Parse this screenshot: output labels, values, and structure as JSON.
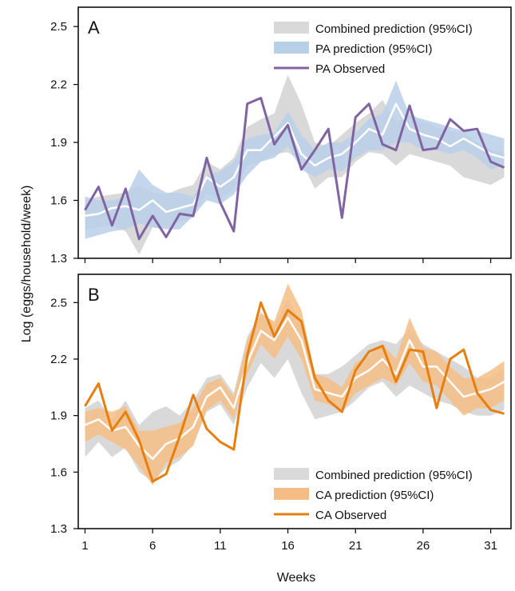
{
  "figure": {
    "ylabel": "Log (eggs/household/week)",
    "xlabel": "Weeks"
  },
  "chart_data": [
    {
      "type": "line",
      "panel_label": "A",
      "ylim": [
        1.3,
        2.6
      ],
      "xlim": [
        0.5,
        32.5
      ],
      "y_ticks": [
        1.3,
        1.6,
        1.9,
        2.2,
        2.5
      ],
      "x_ticks": [
        1,
        6,
        11,
        16,
        21,
        26,
        31
      ],
      "show_x_tick_labels": false,
      "legend_position": "top-right",
      "legend": [
        {
          "label": "Combined prediction (95%CI)",
          "kind": "band",
          "color": "#d9d9d9"
        },
        {
          "label": "PA prediction (95%CI)",
          "kind": "band",
          "color": "#b8cfe8"
        },
        {
          "label": "PA Observed",
          "kind": "line",
          "color": "#8064a2"
        }
      ],
      "colors": {
        "combined_band": "#d9d9d9",
        "pred_band": "#b8cfe8",
        "mean": "#ffffff",
        "observed": "#8064a2"
      },
      "x": [
        1,
        2,
        3,
        4,
        5,
        6,
        7,
        8,
        9,
        10,
        11,
        12,
        13,
        14,
        15,
        16,
        17,
        18,
        19,
        20,
        21,
        22,
        23,
        24,
        25,
        26,
        27,
        28,
        29,
        30,
        31,
        32
      ],
      "series": [
        {
          "name": "Combined prediction (95%CI)",
          "role": "combined_band",
          "lower": [
            1.45,
            1.46,
            1.47,
            1.44,
            1.32,
            1.46,
            1.46,
            1.49,
            1.51,
            1.64,
            1.6,
            1.66,
            1.78,
            1.8,
            1.84,
            1.85,
            1.8,
            1.66,
            1.72,
            1.72,
            1.8,
            1.85,
            1.84,
            1.78,
            1.84,
            1.82,
            1.8,
            1.78,
            1.72,
            1.7,
            1.68,
            1.72
          ],
          "upper": [
            1.6,
            1.62,
            1.63,
            1.64,
            1.68,
            1.64,
            1.63,
            1.66,
            1.68,
            1.8,
            1.76,
            1.82,
            1.98,
            2.02,
            2.05,
            2.25,
            2.1,
            1.9,
            1.88,
            1.94,
            2.0,
            2.05,
            2.12,
            2.0,
            2.06,
            2.0,
            1.98,
            1.96,
            1.95,
            1.9,
            1.86,
            1.85
          ]
        },
        {
          "name": "PA prediction (95%CI)",
          "role": "pred_band",
          "lower": [
            1.4,
            1.42,
            1.44,
            1.45,
            1.48,
            1.46,
            1.45,
            1.45,
            1.52,
            1.6,
            1.58,
            1.63,
            1.73,
            1.8,
            1.82,
            1.88,
            1.76,
            1.72,
            1.76,
            1.75,
            1.82,
            1.86,
            1.86,
            1.9,
            1.9,
            1.86,
            1.86,
            1.84,
            1.86,
            1.82,
            1.76,
            1.78
          ],
          "upper": [
            1.62,
            1.6,
            1.6,
            1.62,
            1.76,
            1.68,
            1.64,
            1.64,
            1.62,
            1.73,
            1.75,
            1.8,
            1.92,
            1.94,
            1.95,
            2.06,
            1.94,
            1.86,
            1.9,
            1.9,
            1.95,
            2.02,
            2.05,
            2.22,
            2.04,
            2.02,
            2.0,
            1.98,
            1.96,
            1.96,
            1.94,
            1.92
          ]
        },
        {
          "name": "",
          "role": "mean",
          "values": [
            1.52,
            1.53,
            1.56,
            1.57,
            1.55,
            1.6,
            1.54,
            1.56,
            1.58,
            1.72,
            1.67,
            1.72,
            1.86,
            1.86,
            1.93,
            2.0,
            1.84,
            1.78,
            1.82,
            1.84,
            1.9,
            1.97,
            1.94,
            2.1,
            1.97,
            1.94,
            1.92,
            1.88,
            1.92,
            1.88,
            1.84,
            1.82
          ]
        },
        {
          "name": "PA Observed",
          "role": "observed",
          "values": [
            1.55,
            1.67,
            1.47,
            1.66,
            1.4,
            1.52,
            1.41,
            1.53,
            1.52,
            1.82,
            1.59,
            1.44,
            2.1,
            2.13,
            1.89,
            1.99,
            1.76,
            1.86,
            1.97,
            1.51,
            2.03,
            2.1,
            1.89,
            1.86,
            2.09,
            1.86,
            1.87,
            2.02,
            1.96,
            1.97,
            1.8,
            1.77
          ]
        }
      ]
    },
    {
      "type": "line",
      "panel_label": "B",
      "ylim": [
        1.3,
        2.65
      ],
      "xlim": [
        0.5,
        32.5
      ],
      "y_ticks": [
        1.3,
        1.6,
        1.9,
        2.2,
        2.5
      ],
      "x_ticks": [
        1,
        6,
        11,
        16,
        21,
        26,
        31
      ],
      "x_tick_labels": [
        "1",
        "6",
        "11",
        "16",
        "21",
        "26",
        "31"
      ],
      "show_x_tick_labels": true,
      "legend_position": "bottom-right",
      "legend": [
        {
          "label": "Combined prediction (95%CI)",
          "kind": "band",
          "color": "#d9d9d9"
        },
        {
          "label": "CA prediction (95%CI)",
          "kind": "band",
          "color": "#f5bd85"
        },
        {
          "label": "CA Observed",
          "kind": "line",
          "color": "#e67e10"
        }
      ],
      "colors": {
        "combined_band": "#d9d9d9",
        "pred_band": "#f5bd85",
        "mean": "#ffffff",
        "observed": "#e67e10"
      },
      "x": [
        1,
        2,
        3,
        4,
        5,
        6,
        7,
        8,
        9,
        10,
        11,
        12,
        13,
        14,
        15,
        16,
        17,
        18,
        19,
        20,
        21,
        22,
        23,
        24,
        25,
        26,
        27,
        28,
        29,
        30,
        31,
        32
      ],
      "series": [
        {
          "name": "Combined prediction (95%CI)",
          "role": "combined_band",
          "lower": [
            1.68,
            1.76,
            1.68,
            1.73,
            1.6,
            1.55,
            1.62,
            1.66,
            1.75,
            1.92,
            1.96,
            1.85,
            2.05,
            2.18,
            2.1,
            2.2,
            2.02,
            1.88,
            1.9,
            1.92,
            1.98,
            2.05,
            2.08,
            2.0,
            2.06,
            2.02,
            1.98,
            1.96,
            1.92,
            1.9,
            1.9,
            1.93
          ],
          "upper": [
            1.94,
            1.98,
            1.88,
            1.98,
            1.85,
            1.92,
            1.95,
            1.9,
            1.98,
            2.1,
            2.12,
            2.02,
            2.32,
            2.45,
            2.38,
            2.52,
            2.38,
            2.12,
            2.12,
            2.16,
            2.22,
            2.28,
            2.3,
            2.28,
            2.36,
            2.28,
            2.24,
            2.2,
            2.16,
            2.1,
            2.1,
            2.15
          ]
        },
        {
          "name": "CA prediction (95%CI)",
          "role": "pred_band",
          "lower": [
            1.76,
            1.8,
            1.76,
            1.72,
            1.63,
            1.53,
            1.65,
            1.68,
            1.74,
            1.93,
            1.98,
            1.88,
            2.12,
            2.28,
            2.2,
            2.32,
            2.2,
            1.98,
            1.96,
            1.92,
            2.02,
            2.06,
            2.1,
            2.06,
            2.18,
            2.08,
            2.06,
            1.98,
            1.9,
            1.94,
            1.94,
            1.98
          ],
          "upper": [
            1.92,
            1.94,
            1.92,
            1.95,
            1.82,
            1.82,
            1.84,
            1.86,
            1.94,
            2.07,
            2.1,
            2.0,
            2.3,
            2.44,
            2.4,
            2.6,
            2.46,
            2.12,
            2.1,
            2.05,
            2.18,
            2.22,
            2.28,
            2.2,
            2.42,
            2.26,
            2.24,
            2.16,
            2.1,
            2.1,
            2.14,
            2.19
          ]
        },
        {
          "name": "",
          "role": "mean",
          "values": [
            1.85,
            1.88,
            1.82,
            1.84,
            1.74,
            1.67,
            1.75,
            1.78,
            1.84,
            2.0,
            2.05,
            1.94,
            2.18,
            2.35,
            2.3,
            2.42,
            2.3,
            2.04,
            2.02,
            2.0,
            2.1,
            2.14,
            2.2,
            2.12,
            2.3,
            2.16,
            2.16,
            2.08,
            2.0,
            2.02,
            2.04,
            2.08
          ]
        },
        {
          "name": "CA Observed",
          "role": "observed",
          "values": [
            1.95,
            2.07,
            1.82,
            1.92,
            1.77,
            1.55,
            1.59,
            1.79,
            2.01,
            1.83,
            1.76,
            1.72,
            2.22,
            2.5,
            2.32,
            2.46,
            2.4,
            2.1,
            1.98,
            1.92,
            2.14,
            2.24,
            2.27,
            2.08,
            2.25,
            2.24,
            1.94,
            2.2,
            2.25,
            2.02,
            1.93,
            1.91
          ]
        }
      ]
    }
  ]
}
